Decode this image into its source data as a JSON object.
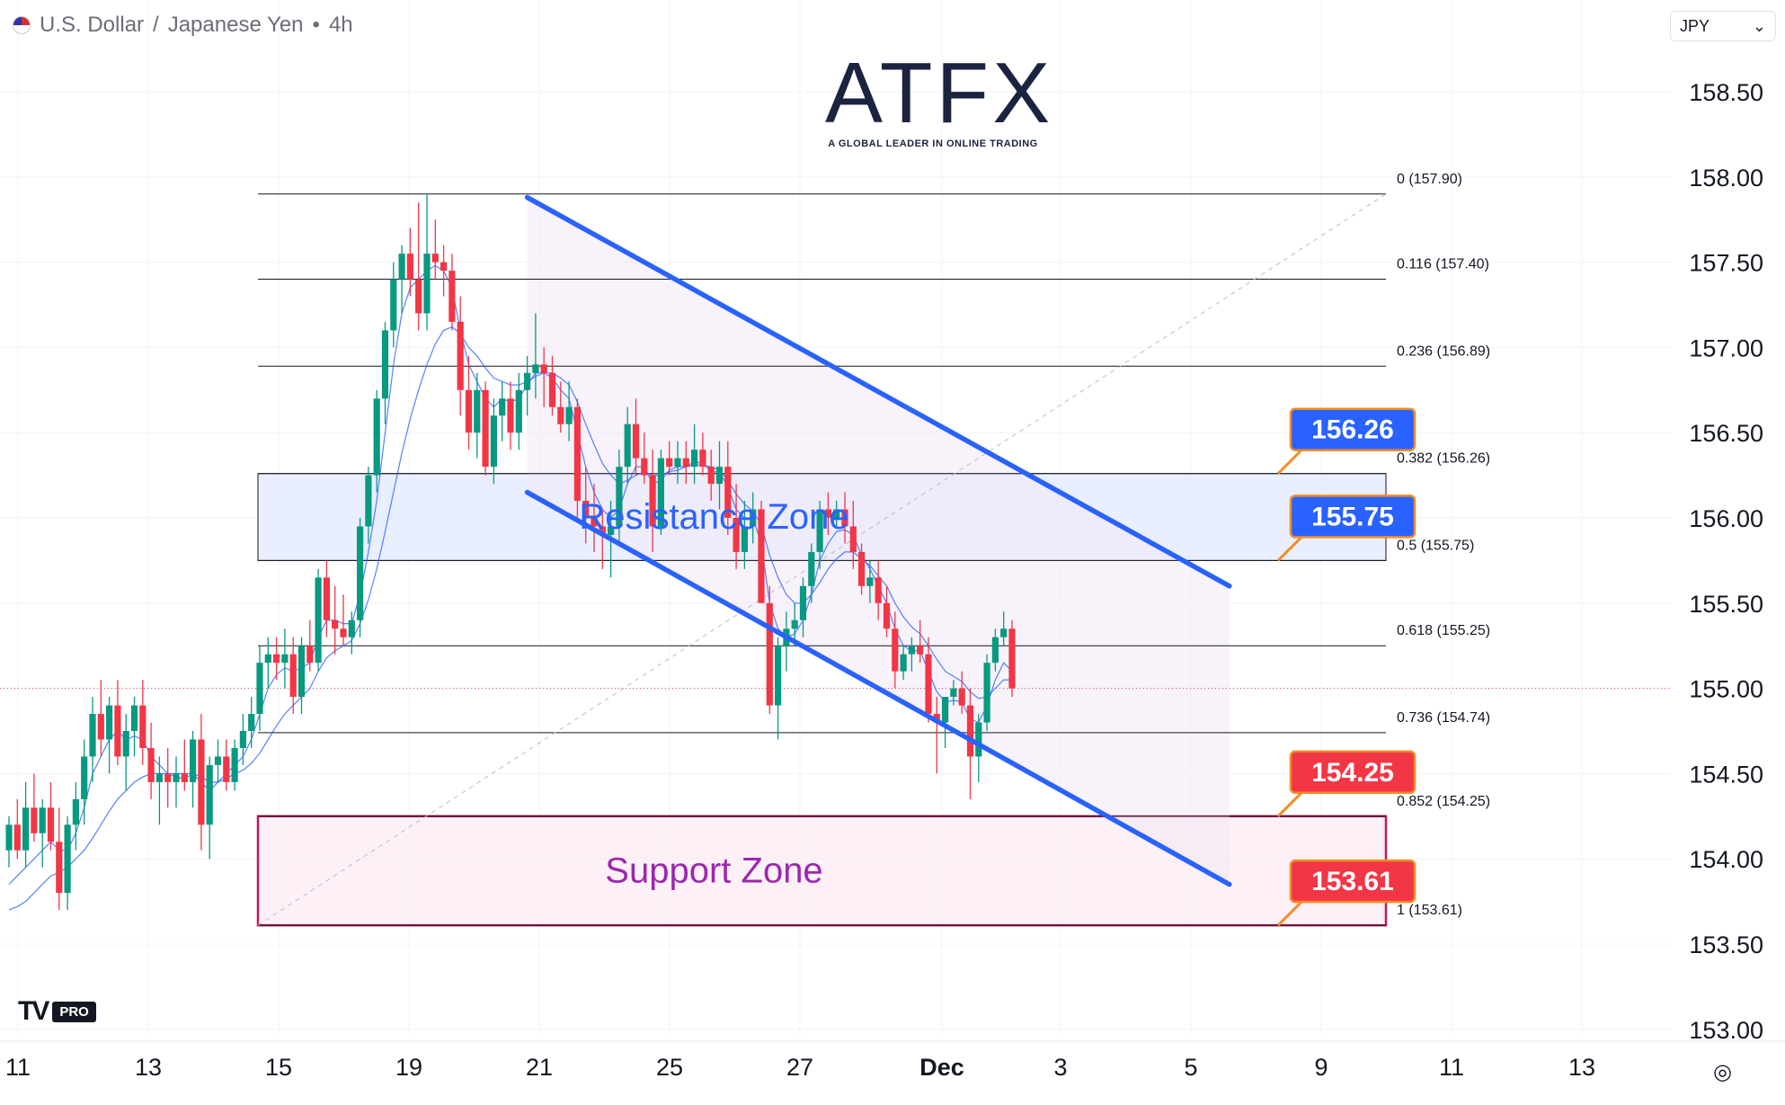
{
  "header": {
    "symbol": "U.S. Dollar",
    "quote": "Japanese Yen",
    "interval": "4h",
    "separator": "/",
    "dot": "•"
  },
  "currency_select": {
    "value": "JPY",
    "icon": "chevron-down-icon"
  },
  "logo": {
    "main": "ATFX",
    "tagline": "A GLOBAL LEADER IN ONLINE TRADING",
    "accent": "#f28c28"
  },
  "tv_badge": {
    "mark": "TV",
    "tier": "PRO"
  },
  "colors": {
    "up": "#089981",
    "down": "#f23645",
    "channel": "#2962ff",
    "resistance_fill": "#e3ebff",
    "support_fill": "#fcebf3",
    "support_border": "#c2185b",
    "ma_line": "#2962ff"
  },
  "chart_data": {
    "type": "candlestick",
    "symbol": "USDJPY",
    "ylim": [
      153.0,
      158.8
    ],
    "y_ticks": [
      "153.00",
      "153.50",
      "154.00",
      "154.50",
      "155.00",
      "155.50",
      "156.00",
      "156.50",
      "157.00",
      "157.50",
      "158.00",
      "158.50"
    ],
    "x_ticks": [
      "11",
      "13",
      "15",
      "19",
      "21",
      "25",
      "27",
      "Dec",
      "3",
      "5",
      "9",
      "11",
      "13"
    ],
    "current_price": 155.0,
    "grid": true,
    "fib_levels": [
      {
        "ratio": "0",
        "price": 157.9,
        "label": "0 (157.90)"
      },
      {
        "ratio": "0.116",
        "price": 157.4,
        "label": "0.116 (157.40)"
      },
      {
        "ratio": "0.236",
        "price": 156.89,
        "label": "0.236 (156.89)"
      },
      {
        "ratio": "0.382",
        "price": 156.26,
        "label": "0.382 (156.26)"
      },
      {
        "ratio": "0.5",
        "price": 155.75,
        "label": "0.5 (155.75)"
      },
      {
        "ratio": "0.618",
        "price": 155.25,
        "label": "0.618 (155.25)"
      },
      {
        "ratio": "0.736",
        "price": 154.74,
        "label": "0.736 (154.74)"
      },
      {
        "ratio": "0.852",
        "price": 154.25,
        "label": "0.852 (154.25)"
      },
      {
        "ratio": "1",
        "price": 153.61,
        "label": "1 (153.61)"
      }
    ],
    "zones": [
      {
        "name": "Resistance Zone",
        "top": 156.26,
        "bottom": 155.75
      },
      {
        "name": "Support Zone",
        "top": 154.25,
        "bottom": 153.61
      }
    ],
    "price_callouts": [
      {
        "text": "156.26",
        "price": 156.26,
        "color": "#2962ff"
      },
      {
        "text": "155.75",
        "price": 155.75,
        "color": "#2962ff"
      },
      {
        "text": "154.25",
        "price": 154.25,
        "color": "#f23645"
      },
      {
        "text": "153.61",
        "price": 153.61,
        "color": "#f23645"
      }
    ],
    "channel": {
      "upper": [
        {
          "i": 62,
          "price": 157.88
        },
        {
          "i": 146,
          "price": 155.6
        }
      ],
      "lower": [
        {
          "i": 62,
          "price": 156.15
        },
        {
          "i": 146,
          "price": 153.85
        }
      ]
    },
    "candles": [
      [
        154.05,
        154.25,
        153.95,
        154.2
      ],
      [
        154.2,
        154.35,
        154.0,
        154.05
      ],
      [
        154.05,
        154.45,
        153.95,
        154.3
      ],
      [
        154.3,
        154.5,
        154.1,
        154.15
      ],
      [
        154.15,
        154.35,
        153.95,
        154.3
      ],
      [
        154.3,
        154.45,
        154.05,
        154.1
      ],
      [
        154.1,
        154.3,
        153.7,
        153.8
      ],
      [
        153.8,
        154.25,
        153.7,
        154.2
      ],
      [
        154.2,
        154.45,
        154.05,
        154.35
      ],
      [
        154.35,
        154.7,
        154.2,
        154.6
      ],
      [
        154.6,
        154.95,
        154.45,
        154.85
      ],
      [
        154.85,
        155.05,
        154.6,
        154.7
      ],
      [
        154.7,
        154.95,
        154.5,
        154.9
      ],
      [
        154.9,
        155.05,
        154.55,
        154.6
      ],
      [
        154.6,
        154.85,
        154.4,
        154.75
      ],
      [
        154.75,
        154.95,
        154.6,
        154.9
      ],
      [
        154.9,
        155.05,
        154.55,
        154.65
      ],
      [
        154.65,
        154.8,
        154.35,
        154.45
      ],
      [
        154.45,
        154.6,
        154.2,
        154.5
      ],
      [
        154.5,
        154.65,
        154.3,
        154.45
      ],
      [
        154.45,
        154.6,
        154.3,
        154.5
      ],
      [
        154.5,
        154.7,
        154.4,
        154.45
      ],
      [
        154.45,
        154.75,
        154.3,
        154.7
      ],
      [
        154.7,
        154.85,
        154.05,
        154.2
      ],
      [
        154.2,
        154.6,
        154.0,
        154.55
      ],
      [
        154.55,
        154.7,
        154.45,
        154.6
      ],
      [
        154.6,
        154.7,
        154.4,
        154.45
      ],
      [
        154.45,
        154.7,
        154.4,
        154.65
      ],
      [
        154.65,
        154.85,
        154.55,
        154.75
      ],
      [
        154.75,
        154.95,
        154.65,
        154.85
      ],
      [
        154.85,
        155.25,
        154.75,
        155.15
      ],
      [
        155.15,
        155.3,
        155.0,
        155.2
      ],
      [
        155.2,
        155.3,
        155.05,
        155.15
      ],
      [
        155.15,
        155.35,
        155.0,
        155.2
      ],
      [
        155.2,
        155.3,
        154.85,
        154.95
      ],
      [
        154.95,
        155.3,
        154.85,
        155.25
      ],
      [
        155.25,
        155.4,
        155.1,
        155.15
      ],
      [
        155.15,
        155.7,
        155.1,
        155.65
      ],
      [
        155.65,
        155.75,
        155.3,
        155.4
      ],
      [
        155.4,
        155.6,
        155.2,
        155.35
      ],
      [
        155.35,
        155.55,
        155.25,
        155.3
      ],
      [
        155.3,
        155.45,
        155.2,
        155.4
      ],
      [
        155.4,
        156.0,
        155.3,
        155.95
      ],
      [
        155.95,
        156.3,
        155.85,
        156.25
      ],
      [
        156.25,
        156.75,
        156.15,
        156.7
      ],
      [
        156.7,
        157.15,
        156.55,
        157.1
      ],
      [
        157.1,
        157.5,
        157.0,
        157.4
      ],
      [
        157.4,
        157.6,
        157.2,
        157.55
      ],
      [
        157.55,
        157.7,
        157.3,
        157.4
      ],
      [
        157.4,
        157.85,
        157.1,
        157.2
      ],
      [
        157.2,
        157.9,
        157.1,
        157.55
      ],
      [
        157.55,
        157.75,
        157.4,
        157.5
      ],
      [
        157.5,
        157.6,
        157.3,
        157.45
      ],
      [
        157.45,
        157.55,
        157.1,
        157.15
      ],
      [
        157.15,
        157.3,
        156.6,
        156.75
      ],
      [
        156.75,
        156.95,
        156.4,
        156.5
      ],
      [
        156.5,
        156.85,
        156.35,
        156.75
      ],
      [
        156.75,
        156.8,
        156.25,
        156.3
      ],
      [
        156.3,
        156.7,
        156.2,
        156.6
      ],
      [
        156.6,
        156.8,
        156.45,
        156.7
      ],
      [
        156.7,
        156.8,
        156.4,
        156.5
      ],
      [
        156.5,
        156.85,
        156.4,
        156.75
      ],
      [
        156.75,
        156.95,
        156.6,
        156.85
      ],
      [
        156.85,
        157.2,
        156.7,
        156.9
      ],
      [
        156.9,
        157.0,
        156.65,
        156.85
      ],
      [
        156.85,
        156.95,
        156.6,
        156.65
      ],
      [
        156.65,
        156.8,
        156.5,
        156.55
      ],
      [
        156.55,
        156.8,
        156.45,
        156.65
      ],
      [
        156.65,
        156.7,
        156.0,
        156.1
      ],
      [
        156.1,
        156.3,
        155.85,
        156.0
      ],
      [
        156.0,
        156.2,
        155.8,
        155.95
      ],
      [
        155.95,
        156.05,
        155.7,
        155.9
      ],
      [
        155.9,
        156.1,
        155.65,
        155.95
      ],
      [
        155.95,
        156.4,
        155.85,
        156.3
      ],
      [
        156.3,
        156.65,
        156.2,
        156.55
      ],
      [
        156.55,
        156.7,
        156.25,
        156.35
      ],
      [
        156.35,
        156.5,
        156.2,
        156.25
      ],
      [
        156.25,
        156.4,
        155.8,
        155.95
      ],
      [
        155.95,
        156.4,
        155.9,
        156.35
      ],
      [
        156.35,
        156.45,
        156.25,
        156.3
      ],
      [
        156.3,
        156.45,
        156.2,
        156.35
      ],
      [
        156.35,
        156.45,
        156.2,
        156.3
      ],
      [
        156.3,
        156.55,
        156.2,
        156.4
      ],
      [
        156.4,
        156.5,
        156.25,
        156.3
      ],
      [
        156.3,
        156.4,
        156.1,
        156.2
      ],
      [
        156.2,
        156.45,
        156.05,
        156.3
      ],
      [
        156.3,
        156.45,
        155.9,
        156.0
      ],
      [
        156.0,
        156.2,
        155.7,
        155.8
      ],
      [
        155.8,
        156.1,
        155.7,
        155.95
      ],
      [
        155.95,
        156.15,
        155.85,
        156.05
      ],
      [
        156.05,
        156.1,
        155.5,
        155.5
      ],
      [
        155.5,
        155.6,
        154.85,
        154.9
      ],
      [
        154.9,
        155.3,
        154.7,
        155.25
      ],
      [
        155.25,
        155.45,
        155.1,
        155.35
      ],
      [
        155.35,
        155.5,
        155.25,
        155.4
      ],
      [
        155.4,
        155.65,
        155.3,
        155.6
      ],
      [
        155.6,
        155.85,
        155.5,
        155.8
      ],
      [
        155.8,
        156.1,
        155.7,
        156.05
      ],
      [
        156.05,
        156.15,
        155.9,
        156.0
      ],
      [
        156.0,
        156.1,
        155.95,
        156.05
      ],
      [
        156.05,
        156.15,
        155.85,
        155.95
      ],
      [
        155.95,
        156.1,
        155.7,
        155.8
      ],
      [
        155.8,
        155.85,
        155.55,
        155.6
      ],
      [
        155.6,
        155.75,
        155.5,
        155.65
      ],
      [
        155.65,
        155.75,
        155.4,
        155.5
      ],
      [
        155.5,
        155.6,
        155.3,
        155.35
      ],
      [
        155.35,
        155.45,
        155.0,
        155.1
      ],
      [
        155.1,
        155.25,
        155.05,
        155.2
      ],
      [
        155.2,
        155.3,
        155.1,
        155.25
      ],
      [
        155.25,
        155.4,
        155.15,
        155.2
      ],
      [
        155.2,
        155.3,
        154.8,
        154.85
      ],
      [
        154.85,
        154.95,
        154.5,
        154.8
      ],
      [
        154.8,
        154.95,
        154.65,
        154.95
      ],
      [
        154.95,
        155.05,
        154.9,
        155.0
      ],
      [
        155.0,
        155.1,
        154.85,
        154.9
      ],
      [
        154.9,
        155.0,
        154.35,
        154.6
      ],
      [
        154.6,
        154.85,
        154.45,
        154.8
      ],
      [
        154.8,
        155.2,
        154.75,
        155.15
      ],
      [
        155.15,
        155.35,
        155.1,
        155.3
      ],
      [
        155.3,
        155.45,
        155.25,
        155.35
      ],
      [
        155.35,
        155.4,
        154.95,
        155.0
      ]
    ],
    "ma_fast": [
      153.85,
      153.9,
      153.95,
      154.0,
      154.05,
      154.1,
      154.05,
      154.05,
      154.15,
      154.3,
      154.5,
      154.6,
      154.7,
      154.75,
      154.7,
      154.72,
      154.7,
      154.6,
      154.55,
      154.5,
      154.48,
      154.47,
      154.5,
      154.45,
      154.4,
      154.45,
      154.5,
      154.55,
      154.6,
      154.7,
      154.85,
      155.0,
      155.08,
      155.12,
      155.1,
      155.12,
      155.15,
      155.3,
      155.4,
      155.4,
      155.38,
      155.38,
      155.55,
      155.8,
      156.1,
      156.5,
      156.9,
      157.2,
      157.35,
      157.4,
      157.45,
      157.48,
      157.45,
      157.35,
      157.1,
      156.9,
      156.8,
      156.7,
      156.65,
      156.7,
      156.68,
      156.7,
      156.78,
      156.85,
      156.85,
      156.82,
      156.75,
      156.7,
      156.5,
      156.3,
      156.15,
      156.05,
      156.0,
      156.05,
      156.2,
      156.3,
      156.3,
      156.2,
      156.22,
      156.28,
      156.3,
      156.3,
      156.33,
      156.32,
      156.27,
      156.27,
      156.18,
      156.05,
      156.0,
      156.0,
      155.85,
      155.5,
      155.35,
      155.3,
      155.32,
      155.4,
      155.55,
      155.75,
      155.85,
      155.92,
      155.93,
      155.9,
      155.78,
      155.7,
      155.6,
      155.5,
      155.35,
      155.25,
      155.22,
      155.22,
      155.1,
      154.98,
      154.92,
      154.93,
      154.92,
      154.82,
      154.8,
      154.9,
      155.05,
      155.15,
      155.1
    ],
    "ma_slow": [
      153.7,
      153.72,
      153.75,
      153.8,
      153.85,
      153.9,
      153.92,
      153.95,
      154.0,
      154.05,
      154.12,
      154.2,
      154.28,
      154.35,
      154.4,
      154.45,
      154.48,
      154.5,
      154.5,
      154.5,
      154.5,
      154.5,
      154.5,
      154.48,
      154.45,
      154.45,
      154.47,
      154.5,
      154.52,
      154.56,
      154.62,
      154.7,
      154.78,
      154.85,
      154.9,
      154.95,
      155.0,
      155.1,
      155.18,
      155.22,
      155.25,
      155.28,
      155.38,
      155.52,
      155.7,
      155.92,
      156.15,
      156.38,
      156.58,
      156.75,
      156.9,
      157.02,
      157.1,
      157.12,
      157.08,
      157.0,
      156.95,
      156.88,
      156.82,
      156.8,
      156.78,
      156.78,
      156.8,
      156.83,
      156.85,
      156.85,
      156.82,
      156.78,
      156.68,
      156.55,
      156.43,
      156.32,
      156.25,
      156.2,
      156.22,
      156.25,
      156.27,
      156.25,
      156.25,
      156.27,
      156.28,
      156.3,
      156.31,
      156.31,
      156.3,
      156.28,
      156.22,
      156.14,
      156.08,
      156.04,
      155.96,
      155.78,
      155.65,
      155.55,
      155.5,
      155.5,
      155.55,
      155.62,
      155.7,
      155.76,
      155.8,
      155.8,
      155.76,
      155.72,
      155.66,
      155.6,
      155.5,
      155.42,
      155.36,
      155.32,
      155.25,
      155.17,
      155.1,
      155.07,
      155.04,
      154.98,
      154.94,
      154.95,
      155.0,
      155.05,
      155.05
    ]
  }
}
